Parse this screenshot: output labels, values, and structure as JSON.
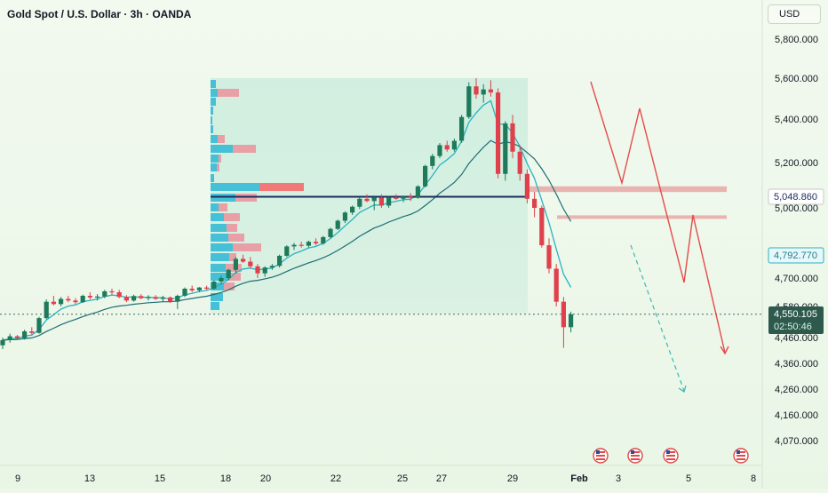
{
  "header": {
    "title": "Gold Spot / U.S. Dollar · 3h · OANDA",
    "currency": "USD"
  },
  "colors": {
    "background": "#eef7ea",
    "candle_up": "#1e7a5a",
    "candle_down": "#e0404b",
    "ema_fast": "#2bb3c0",
    "ema_slow": "#1d6d73",
    "projection": "#e64a4a",
    "projection_alt": "#3bb8b0",
    "support_zone": "#e7a8a6",
    "volume_blue": "#45c0d6",
    "volume_red": "#f27777",
    "level_line": "#1b2a5e",
    "price_tag_bg": "#2d5a4c",
    "price_tag_alt": "#2bb3c0",
    "highlight_box": "#d1ecdc"
  },
  "price_axis": {
    "ticks": [
      "5,800.000",
      "5,600.000",
      "5,400.000",
      "5,200.000",
      "5,000.000",
      "4,700.000",
      "4,580.000",
      "4,460.000",
      "4,360.000",
      "4,260.000",
      "4,160.000",
      "4,070.000"
    ],
    "tags": {
      "level": "5,048.860",
      "ema": "4,792.770",
      "last": "4,550.105",
      "countdown": "02:50:46"
    }
  },
  "time_axis": {
    "ticks": [
      "9",
      "13",
      "15",
      "18",
      "20",
      "22",
      "25",
      "27",
      "29",
      "Feb",
      "3",
      "5",
      "8"
    ]
  },
  "events": {
    "icon": "us-flag-icon",
    "count": 4
  },
  "chart_data": {
    "type": "candlestick",
    "title": "Gold Spot / U.S. Dollar · 3h · OANDA",
    "series": [
      {
        "kind": "candles",
        "ohlc": [
          [
            4430,
            4460,
            4415,
            4450
          ],
          [
            4450,
            4475,
            4440,
            4465
          ],
          [
            4465,
            4470,
            4450,
            4458
          ],
          [
            4458,
            4490,
            4452,
            4484
          ],
          [
            4484,
            4500,
            4470,
            4478
          ],
          [
            4478,
            4540,
            4475,
            4535
          ],
          [
            4535,
            4610,
            4530,
            4600
          ],
          [
            4600,
            4625,
            4585,
            4590
          ],
          [
            4590,
            4620,
            4580,
            4612
          ],
          [
            4612,
            4625,
            4598,
            4605
          ],
          [
            4605,
            4615,
            4590,
            4598
          ],
          [
            4598,
            4630,
            4595,
            4625
          ],
          [
            4625,
            4640,
            4610,
            4618
          ],
          [
            4618,
            4632,
            4605,
            4622
          ],
          [
            4622,
            4650,
            4615,
            4644
          ],
          [
            4644,
            4655,
            4630,
            4640
          ],
          [
            4640,
            4650,
            4615,
            4620
          ],
          [
            4620,
            4628,
            4598,
            4605
          ],
          [
            4605,
            4630,
            4600,
            4624
          ],
          [
            4624,
            4632,
            4610,
            4615
          ],
          [
            4615,
            4628,
            4605,
            4620
          ],
          [
            4620,
            4628,
            4608,
            4612
          ],
          [
            4612,
            4625,
            4600,
            4618
          ],
          [
            4618,
            4622,
            4595,
            4600
          ],
          [
            4600,
            4630,
            4570,
            4625
          ],
          [
            4625,
            4660,
            4620,
            4655
          ],
          [
            4655,
            4668,
            4640,
            4648
          ],
          [
            4648,
            4662,
            4640,
            4660
          ],
          [
            4660,
            4668,
            4650,
            4655
          ],
          [
            4655,
            4690,
            4650,
            4685
          ],
          [
            4685,
            4710,
            4675,
            4700
          ],
          [
            4700,
            4740,
            4690,
            4735
          ],
          [
            4735,
            4790,
            4720,
            4782
          ],
          [
            4782,
            4800,
            4765,
            4770
          ],
          [
            4770,
            4790,
            4740,
            4750
          ],
          [
            4750,
            4760,
            4700,
            4720
          ],
          [
            4720,
            4750,
            4705,
            4745
          ],
          [
            4745,
            4760,
            4735,
            4752
          ],
          [
            4752,
            4800,
            4745,
            4795
          ],
          [
            4795,
            4840,
            4790,
            4835
          ],
          [
            4835,
            4850,
            4820,
            4842
          ],
          [
            4842,
            4855,
            4830,
            4838
          ],
          [
            4838,
            4860,
            4830,
            4855
          ],
          [
            4855,
            4870,
            4840,
            4848
          ],
          [
            4848,
            4880,
            4842,
            4875
          ],
          [
            4875,
            4915,
            4870,
            4910
          ],
          [
            4910,
            4950,
            4905,
            4945
          ],
          [
            4945,
            4985,
            4935,
            4980
          ],
          [
            4980,
            5010,
            4970,
            5005
          ],
          [
            5005,
            5045,
            4995,
            5040
          ],
          [
            5040,
            5060,
            5025,
            5030
          ],
          [
            5030,
            5055,
            4990,
            5045
          ],
          [
            5045,
            5060,
            5000,
            5010
          ],
          [
            5010,
            5050,
            5000,
            5046
          ],
          [
            5046,
            5060,
            5035,
            5040
          ],
          [
            5040,
            5055,
            5025,
            5050
          ],
          [
            5050,
            5065,
            5030,
            5044
          ],
          [
            5044,
            5100,
            5040,
            5095
          ],
          [
            5095,
            5190,
            5090,
            5185
          ],
          [
            5185,
            5240,
            5170,
            5230
          ],
          [
            5230,
            5290,
            5220,
            5280
          ],
          [
            5280,
            5300,
            5250,
            5260
          ],
          [
            5260,
            5310,
            5250,
            5300
          ],
          [
            5300,
            5420,
            5290,
            5410
          ],
          [
            5410,
            5580,
            5400,
            5560
          ],
          [
            5560,
            5600,
            5500,
            5520
          ],
          [
            5520,
            5570,
            5480,
            5545
          ],
          [
            5545,
            5590,
            5510,
            5530
          ],
          [
            5530,
            5550,
            5130,
            5150
          ],
          [
            5150,
            5390,
            5120,
            5380
          ],
          [
            5380,
            5420,
            5220,
            5250
          ],
          [
            5250,
            5280,
            5120,
            5150
          ],
          [
            5150,
            5170,
            5020,
            5040
          ],
          [
            5040,
            5070,
            4960,
            5000
          ],
          [
            5000,
            5010,
            4830,
            4840
          ],
          [
            4840,
            4870,
            4720,
            4740
          ],
          [
            4740,
            4760,
            4580,
            4600
          ],
          [
            4600,
            4620,
            4420,
            4500
          ],
          [
            4500,
            4560,
            4480,
            4550
          ]
        ]
      },
      {
        "kind": "line",
        "name": "",
        "values": "ema-fast"
      },
      {
        "kind": "line",
        "name": "",
        "values": "ema-slow"
      }
    ],
    "horizontal_levels": [
      5048.86
    ],
    "zones": [
      [
        5095,
        5070
      ],
      [
        4968,
        4955
      ]
    ],
    "projection_main": [
      [
        5580,
        "Jan 31"
      ],
      [
        5100,
        "Feb 2"
      ],
      [
        5450,
        "Feb 3"
      ],
      [
        4680,
        "Feb 5"
      ],
      [
        4950,
        "Feb 5"
      ],
      [
        4400,
        "Feb 7"
      ]
    ],
    "projection_alt": [
      [
        4840,
        "Feb 3"
      ],
      [
        4270,
        "Feb 5"
      ]
    ],
    "ylim": [
      4040,
      5850
    ],
    "xlabel": "",
    "ylabel": "",
    "grid": false,
    "legend": "none"
  }
}
